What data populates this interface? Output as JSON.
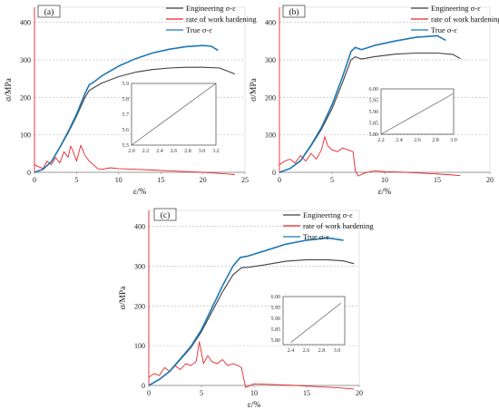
{
  "chart_data": [
    {
      "type": "line",
      "panel_label": "(a)",
      "xlabel": "ε/%",
      "ylabel": "σ/MPa",
      "xlim": [
        0,
        25
      ],
      "ylim": [
        0,
        440
      ],
      "xticks": [
        "0",
        "5",
        "10",
        "15",
        "20",
        "25"
      ],
      "yticks": [
        "0",
        "100",
        "200",
        "300",
        "400"
      ],
      "grid": "dashed-horizontal",
      "legend_position": "top-right",
      "series": [
        {
          "name": "Engineering σ-ε",
          "color": "#404040",
          "x": [
            0,
            1,
            2,
            3,
            4,
            5,
            6,
            6.5,
            7,
            8,
            10,
            12,
            14,
            16,
            18,
            20,
            22,
            23.8
          ],
          "y": [
            0,
            8,
            28,
            65,
            105,
            150,
            200,
            218,
            225,
            238,
            255,
            267,
            274,
            278,
            280,
            280,
            278,
            262
          ]
        },
        {
          "name": "rate of work hardening",
          "color": "#e8262a",
          "x": [
            0,
            0.5,
            1,
            1.5,
            2,
            2.5,
            3,
            3.5,
            4,
            4.3,
            4.6,
            5,
            5.5,
            6,
            6.5,
            7,
            7.5,
            8,
            9,
            10,
            12,
            14,
            16,
            18,
            20,
            22,
            23.8
          ],
          "y": [
            20,
            15,
            10,
            30,
            20,
            40,
            25,
            55,
            40,
            70,
            55,
            30,
            72,
            45,
            30,
            20,
            10,
            8,
            12,
            10,
            8,
            6,
            4,
            2,
            0,
            -3,
            -6
          ]
        },
        {
          "name": "True σ-ε",
          "color": "#1f77b4",
          "x": [
            0,
            1,
            2,
            3,
            4,
            5,
            6,
            6.5,
            7,
            8,
            10,
            12,
            14,
            16,
            18,
            20,
            21,
            21.8
          ],
          "y": [
            0,
            8,
            28,
            66,
            108,
            155,
            210,
            233,
            240,
            257,
            283,
            303,
            318,
            328,
            335,
            338,
            336,
            325
          ]
        }
      ],
      "inset": {
        "xlim": [
          2.0,
          3.2
        ],
        "ylim": [
          5.5,
          5.9
        ],
        "xticks": [
          "2.0",
          "2.2",
          "2.4",
          "2.6",
          "2.8",
          "3.0",
          "3.2"
        ],
        "yticks": [
          "5.5",
          "5.6",
          "5.7",
          "5.8",
          "5.9"
        ],
        "line": {
          "x": [
            2.0,
            3.2
          ],
          "y": [
            5.5,
            5.9
          ]
        }
      }
    },
    {
      "type": "line",
      "panel_label": "(b)",
      "xlabel": "ε/%",
      "ylabel": "σ/MPa",
      "xlim": [
        0,
        20
      ],
      "ylim": [
        0,
        440
      ],
      "xticks": [
        "0",
        "5",
        "10",
        "15",
        "20"
      ],
      "yticks": [
        "0",
        "100",
        "200",
        "300",
        "400"
      ],
      "grid": "dashed-horizontal",
      "legend_position": "top-right",
      "series": [
        {
          "name": "Engineering σ-ε",
          "color": "#404040",
          "x": [
            0,
            1,
            2,
            3,
            4,
            5,
            6,
            6.8,
            7.2,
            7.8,
            9,
            11,
            13,
            15,
            16.5,
            17.2
          ],
          "y": [
            0,
            10,
            30,
            70,
            115,
            170,
            240,
            300,
            308,
            302,
            308,
            315,
            318,
            318,
            314,
            303
          ]
        },
        {
          "name": "rate of work hardening",
          "color": "#e8262a",
          "x": [
            0,
            0.5,
            1,
            1.5,
            2,
            2.5,
            3,
            3.5,
            4,
            4.3,
            4.6,
            5,
            5.5,
            6,
            6.5,
            7,
            7.2,
            7.5,
            8,
            9,
            10,
            12,
            14,
            16,
            17.2
          ],
          "y": [
            20,
            30,
            35,
            25,
            45,
            30,
            50,
            35,
            60,
            95,
            70,
            60,
            55,
            65,
            60,
            55,
            5,
            -10,
            -3,
            4,
            2,
            0,
            -3,
            -6,
            -9
          ]
        },
        {
          "name": "True σ-ε",
          "color": "#1f77b4",
          "x": [
            0,
            1,
            2,
            3,
            4,
            5,
            6,
            6.8,
            7.2,
            7.8,
            9,
            11,
            13,
            15,
            15.8
          ],
          "y": [
            0,
            10,
            31,
            72,
            120,
            180,
            255,
            322,
            333,
            327,
            338,
            350,
            360,
            364,
            352
          ]
        }
      ],
      "inset": {
        "xlim": [
          2.2,
          3.0
        ],
        "ylim": [
          5.8,
          6.0
        ],
        "xticks": [
          "2.2",
          "2.4",
          "2.6",
          "2.8",
          "3.0"
        ],
        "yticks": [
          "5.80",
          "5.85",
          "5.90",
          "5.95",
          "6.00"
        ],
        "line": {
          "x": [
            2.2,
            3.0
          ],
          "y": [
            5.8,
            5.98
          ]
        }
      }
    },
    {
      "type": "line",
      "panel_label": "(c)",
      "xlabel": "ε/%",
      "ylabel": "σ/MPa",
      "xlim": [
        0,
        20
      ],
      "ylim": [
        0,
        440
      ],
      "xticks": [
        "0",
        "5",
        "10",
        "15",
        "20"
      ],
      "yticks": [
        "0",
        "100",
        "200",
        "300",
        "400"
      ],
      "grid": "dashed-horizontal",
      "legend_position": "top-right",
      "series": [
        {
          "name": "Engineering σ-ε",
          "color": "#404040",
          "x": [
            0,
            1,
            2,
            3,
            4,
            5,
            6,
            7,
            8,
            8.8,
            9.5,
            11,
            13,
            15,
            17,
            18.5,
            19.5
          ],
          "y": [
            0,
            15,
            35,
            65,
            95,
            135,
            185,
            235,
            278,
            296,
            297,
            303,
            312,
            316,
            316,
            313,
            306
          ]
        },
        {
          "name": "rate of work hardening",
          "color": "#e8262a",
          "x": [
            0,
            0.5,
            1,
            1.5,
            2,
            2.5,
            3,
            3.5,
            4,
            4.5,
            4.8,
            5.2,
            5.6,
            6,
            6.5,
            7,
            7.5,
            8,
            8.5,
            8.8,
            9.2,
            10,
            12,
            14,
            16,
            18,
            19.5
          ],
          "y": [
            20,
            30,
            25,
            45,
            35,
            50,
            40,
            55,
            50,
            60,
            110,
            55,
            75,
            60,
            55,
            65,
            50,
            55,
            50,
            45,
            -5,
            4,
            2,
            0,
            -3,
            -6,
            -9
          ]
        },
        {
          "name": "True σ-ε",
          "color": "#1f77b4",
          "x": [
            0,
            1,
            2,
            3,
            4,
            5,
            6,
            7,
            8,
            8.7,
            9.4,
            11,
            13,
            15,
            17,
            18.5
          ],
          "y": [
            0,
            15,
            36,
            67,
            98,
            140,
            195,
            250,
            300,
            322,
            325,
            338,
            355,
            365,
            371,
            365
          ]
        }
      ],
      "inset": {
        "xlim": [
          2.3,
          3.1
        ],
        "ylim": [
          5.78,
          6.0
        ],
        "xticks": [
          "2.4",
          "2.6",
          "2.8",
          "3.0"
        ],
        "yticks": [
          "5.80",
          "5.85",
          "5.90",
          "5.95",
          "6.00"
        ],
        "line": {
          "x": [
            2.4,
            3.05
          ],
          "y": [
            5.79,
            5.97
          ]
        }
      }
    }
  ]
}
